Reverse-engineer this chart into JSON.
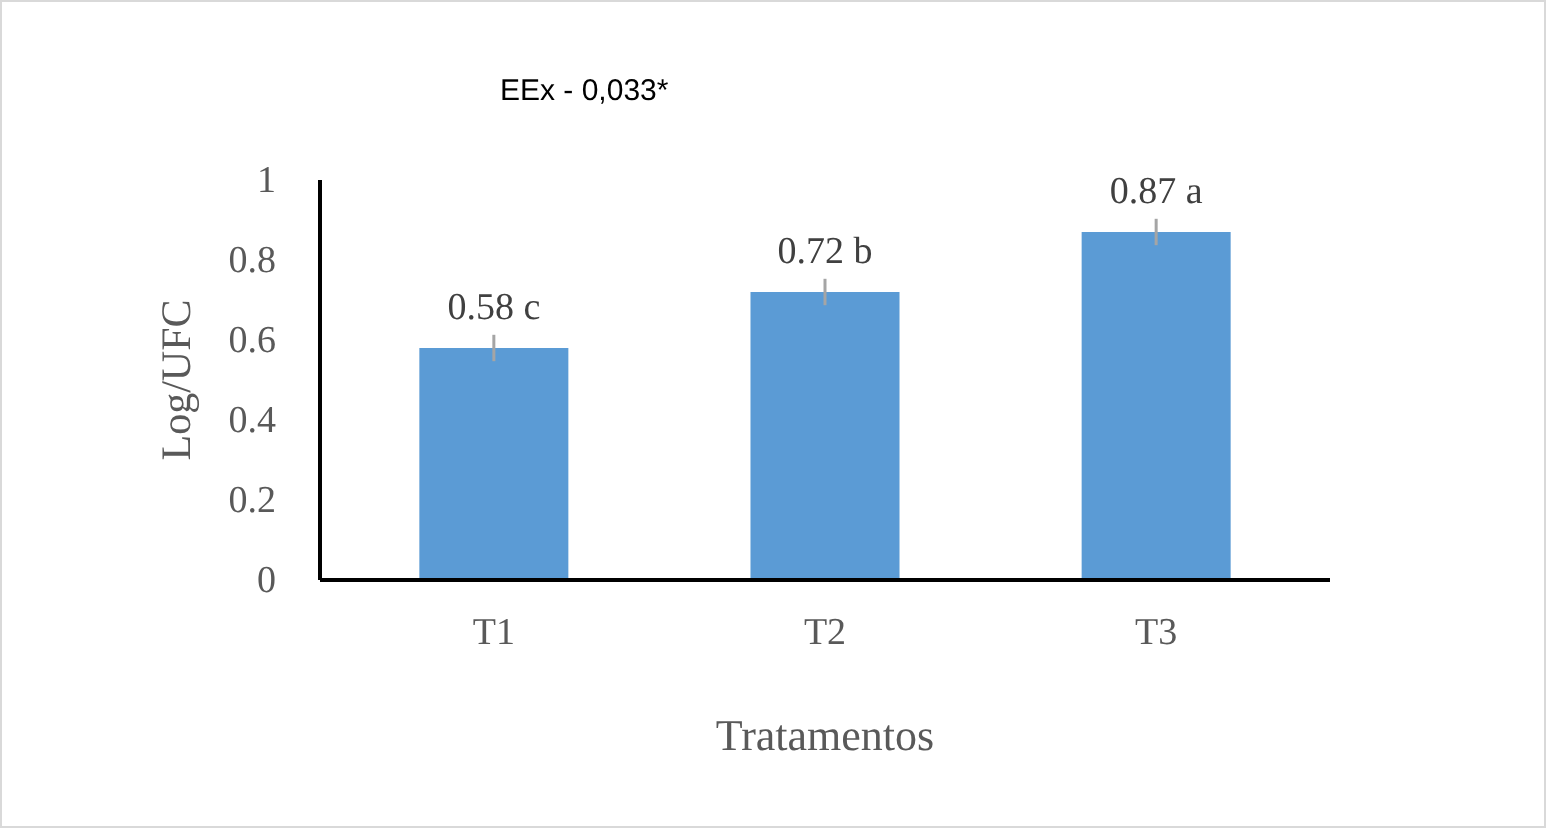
{
  "chart_data": {
    "type": "bar",
    "title": "EEx - 0,033*",
    "categories": [
      "T1",
      "T2",
      "T3"
    ],
    "values": [
      0.58,
      0.72,
      0.87
    ],
    "value_labels": [
      "0.58 c",
      "0.72 b",
      "0.87 a"
    ],
    "errors": [
      0.033,
      0.033,
      0.033
    ],
    "color": "#5b9bd5",
    "xlabel": "Tratamentos",
    "ylabel": "Log/UFC",
    "ylim": [
      0,
      1
    ],
    "yticks": [
      0,
      0.2,
      0.4,
      0.6,
      0.8,
      1
    ],
    "grid": false
  }
}
